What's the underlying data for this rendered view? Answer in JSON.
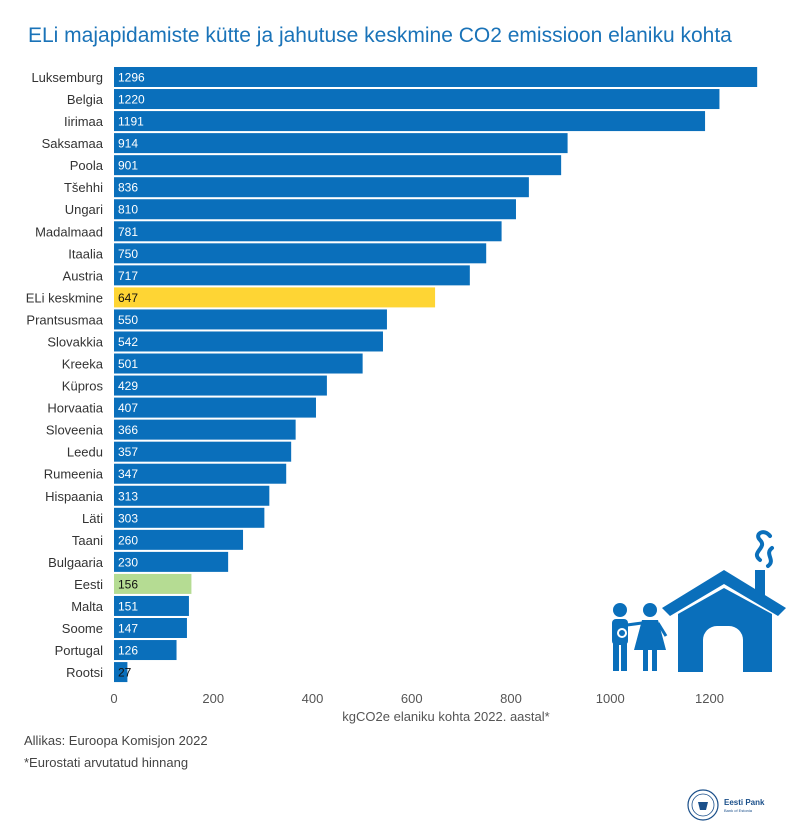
{
  "header": {
    "title": "ELi majapidamiste kütte ja jahutuse keskmine CO2 emissioon elaniku kohta"
  },
  "footer": {
    "source": "Allikas: Euroopa Komisjon 2022",
    "note": "*Eurostati arvutatud hinnang"
  },
  "logo": {
    "name": "Eesti Pank",
    "subtitle": "Bank of Estonia"
  },
  "illustration": {
    "icons": [
      "family-icon",
      "house-icon",
      "chimney-smoke-icon"
    ]
  },
  "colors": {
    "bar": "#0a6fbb",
    "eu_average": "#fed534",
    "estonia": "#b5dc93",
    "title": "#1a73b8"
  },
  "chart_data": {
    "type": "bar",
    "orientation": "horizontal",
    "title": "ELi majapidamiste kütte ja jahutuse keskmine CO2 emissioon elaniku kohta",
    "xlabel": "kgCO2e elaniku kohta 2022. aastal*",
    "ylabel": "",
    "xlim": [
      0,
      1340
    ],
    "xticks": [
      0,
      200,
      400,
      600,
      800,
      1000,
      1200
    ],
    "grid": false,
    "categories": [
      "Luksemburg",
      "Belgia",
      "Iirimaa",
      "Saksamaa",
      "Poola",
      "Tšehhi",
      "Ungari",
      "Madalmaad",
      "Itaalia",
      "Austria",
      "ELi keskmine",
      "Prantsusmaa",
      "Slovakkia",
      "Kreeka",
      "Küpros",
      "Horvaatia",
      "Sloveenia",
      "Leedu",
      "Rumeenia",
      "Hispaania",
      "Läti",
      "Taani",
      "Bulgaaria",
      "Eesti",
      "Malta",
      "Soome",
      "Portugal",
      "Rootsi"
    ],
    "values": [
      1296,
      1220,
      1191,
      914,
      901,
      836,
      810,
      781,
      750,
      717,
      647,
      550,
      542,
      501,
      429,
      407,
      366,
      357,
      347,
      313,
      303,
      260,
      230,
      156,
      151,
      147,
      126,
      27
    ],
    "highlight": {
      "ELi keskmine": "#fed534",
      "Eesti": "#b5dc93"
    }
  }
}
